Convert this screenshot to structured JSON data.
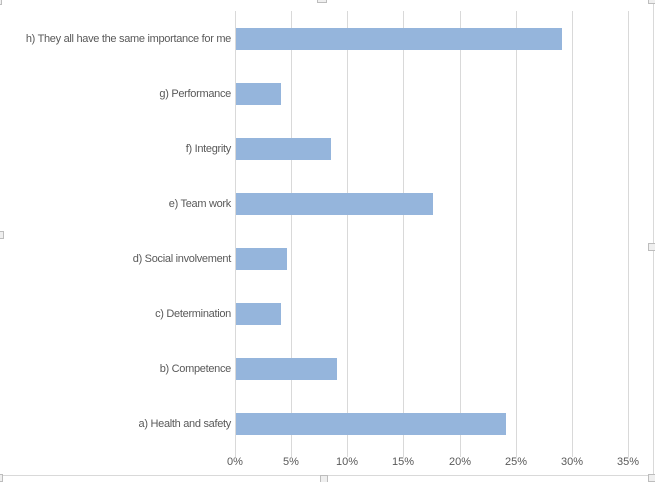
{
  "chart_data": {
    "type": "bar",
    "orientation": "horizontal",
    "title": "",
    "xlabel": "",
    "ylabel": "",
    "unit": "%",
    "categories": [
      "h) They all have the same importance for me",
      "g) Performance",
      "f) Integrity",
      "e) Team work",
      "d) Social involvement",
      "c) Determination",
      "b) Competence",
      "a) Health and safety"
    ],
    "values": [
      29,
      4,
      8.5,
      17.5,
      4.5,
      4,
      9,
      24
    ],
    "xlim": [
      0,
      35
    ],
    "xtick_values": [
      0,
      5,
      10,
      15,
      20,
      25,
      30,
      35
    ],
    "xtick_labels": [
      "0%",
      "5%",
      "10%",
      "15%",
      "20%",
      "25%",
      "30%",
      "35%"
    ],
    "grid": true,
    "legend": false,
    "colors": {
      "bar_fill": "#95b5dc",
      "gridline": "#d9d9d9",
      "axis_line": "#d9d9d9",
      "text": "#595959",
      "background": "#ffffff",
      "selection_handle_fill": "#efefef",
      "selection_handle_border": "#bdbdbd"
    }
  }
}
